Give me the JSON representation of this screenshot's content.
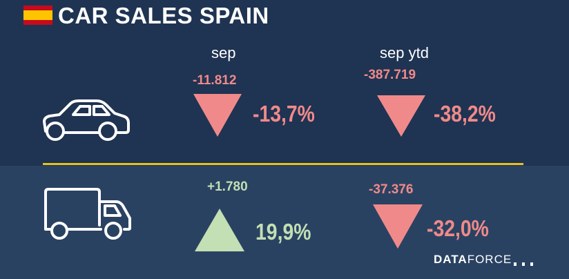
{
  "header": {
    "title": "CAR SALES SPAIN",
    "flag_icon": "spain-flag-icon"
  },
  "columns": {
    "month_label": "sep",
    "ytd_label": "sep ytd"
  },
  "rows": [
    {
      "vehicle_icon": "car-icon",
      "month": {
        "change": "-11.812",
        "percent": "-13,7%",
        "direction": "down"
      },
      "ytd": {
        "change": "-387.719",
        "percent": "-38,2%",
        "direction": "down"
      }
    },
    {
      "vehicle_icon": "truck-icon",
      "month": {
        "change": "+1.780",
        "percent": "19,9%",
        "direction": "up"
      },
      "ytd": {
        "change": "-37.376",
        "percent": "-32,0%",
        "direction": "down"
      }
    }
  ],
  "brand": {
    "part1": "DATA",
    "part2": "FORCE"
  },
  "colors": {
    "negative": "#f08a8a",
    "positive": "#c3dfb4",
    "divider": "#e7c21e",
    "background": "#243a57"
  }
}
